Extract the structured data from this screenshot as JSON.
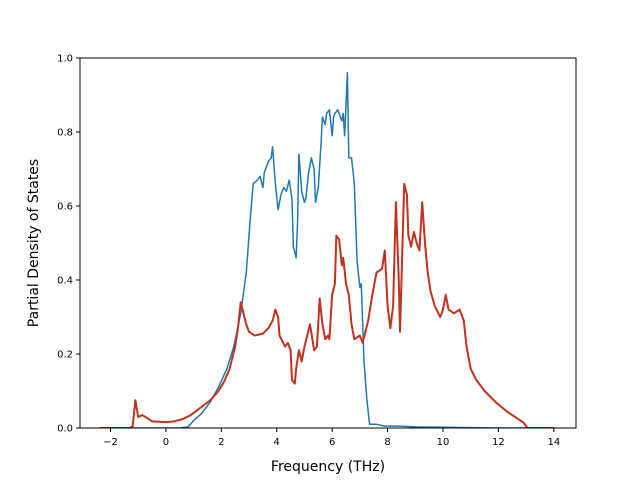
{
  "chart_data": {
    "type": "line",
    "xlabel": "Frequency (THz)",
    "ylabel": "Partial Density of States",
    "xlim": [
      -3.1,
      14.8
    ],
    "ylim": [
      0,
      1.0
    ],
    "xticks": [
      -2,
      0,
      2,
      4,
      6,
      8,
      10,
      12,
      14
    ],
    "xtick_labels": [
      "−2",
      "0",
      "2",
      "4",
      "6",
      "8",
      "10",
      "12",
      "14"
    ],
    "yticks": [
      0.0,
      0.2,
      0.4,
      0.6,
      0.8,
      1.0
    ],
    "ytick_labels": [
      "0.0",
      "0.2",
      "0.4",
      "0.6",
      "0.8",
      "1.0"
    ],
    "grid": false,
    "series": [
      {
        "color": "#1f77b4",
        "points": [
          [
            -2.4,
            0.0
          ],
          [
            0.5,
            0.0
          ],
          [
            0.8,
            0.003
          ],
          [
            1.0,
            0.02
          ],
          [
            1.3,
            0.04
          ],
          [
            1.6,
            0.07
          ],
          [
            1.9,
            0.11
          ],
          [
            2.2,
            0.16
          ],
          [
            2.45,
            0.22
          ],
          [
            2.7,
            0.31
          ],
          [
            2.9,
            0.42
          ],
          [
            3.0,
            0.52
          ],
          [
            3.05,
            0.57
          ],
          [
            3.15,
            0.66
          ],
          [
            3.3,
            0.67
          ],
          [
            3.4,
            0.68
          ],
          [
            3.5,
            0.65
          ],
          [
            3.55,
            0.69
          ],
          [
            3.7,
            0.72
          ],
          [
            3.8,
            0.73
          ],
          [
            3.85,
            0.76
          ],
          [
            3.95,
            0.66
          ],
          [
            4.05,
            0.59
          ],
          [
            4.15,
            0.63
          ],
          [
            4.25,
            0.65
          ],
          [
            4.35,
            0.64
          ],
          [
            4.45,
            0.67
          ],
          [
            4.55,
            0.62
          ],
          [
            4.6,
            0.49
          ],
          [
            4.7,
            0.46
          ],
          [
            4.75,
            0.55
          ],
          [
            4.8,
            0.74
          ],
          [
            4.9,
            0.64
          ],
          [
            5.0,
            0.61
          ],
          [
            5.05,
            0.62
          ],
          [
            5.15,
            0.69
          ],
          [
            5.25,
            0.73
          ],
          [
            5.35,
            0.7
          ],
          [
            5.4,
            0.61
          ],
          [
            5.5,
            0.65
          ],
          [
            5.6,
            0.77
          ],
          [
            5.65,
            0.84
          ],
          [
            5.75,
            0.82
          ],
          [
            5.8,
            0.85
          ],
          [
            5.9,
            0.86
          ],
          [
            6.0,
            0.79
          ],
          [
            6.05,
            0.84
          ],
          [
            6.1,
            0.85
          ],
          [
            6.2,
            0.86
          ],
          [
            6.3,
            0.84
          ],
          [
            6.35,
            0.83
          ],
          [
            6.4,
            0.85
          ],
          [
            6.45,
            0.79
          ],
          [
            6.55,
            0.96
          ],
          [
            6.6,
            0.73
          ],
          [
            6.7,
            0.73
          ],
          [
            6.8,
            0.66
          ],
          [
            6.9,
            0.45
          ],
          [
            7.0,
            0.38
          ],
          [
            7.05,
            0.39
          ],
          [
            7.15,
            0.18
          ],
          [
            7.25,
            0.08
          ],
          [
            7.35,
            0.01
          ],
          [
            7.6,
            0.01
          ],
          [
            7.9,
            0.005
          ],
          [
            8.4,
            0.005
          ],
          [
            9.0,
            0.003
          ],
          [
            10.0,
            0.002
          ],
          [
            11.0,
            0.001
          ],
          [
            12.0,
            0.0
          ],
          [
            14.0,
            0.0
          ]
        ]
      },
      {
        "color": "#c0321e",
        "points": [
          [
            -2.4,
            0.0
          ],
          [
            -1.3,
            0.0
          ],
          [
            -1.2,
            0.005
          ],
          [
            -1.1,
            0.075
          ],
          [
            -1.0,
            0.03
          ],
          [
            -0.85,
            0.035
          ],
          [
            -0.7,
            0.028
          ],
          [
            -0.5,
            0.018
          ],
          [
            0.0,
            0.016
          ],
          [
            0.3,
            0.018
          ],
          [
            0.6,
            0.024
          ],
          [
            0.9,
            0.035
          ],
          [
            1.2,
            0.052
          ],
          [
            1.6,
            0.075
          ],
          [
            1.9,
            0.1
          ],
          [
            2.1,
            0.125
          ],
          [
            2.3,
            0.16
          ],
          [
            2.5,
            0.22
          ],
          [
            2.6,
            0.27
          ],
          [
            2.7,
            0.34
          ],
          [
            2.8,
            0.31
          ],
          [
            2.9,
            0.28
          ],
          [
            3.0,
            0.26
          ],
          [
            3.2,
            0.25
          ],
          [
            3.5,
            0.255
          ],
          [
            3.7,
            0.27
          ],
          [
            3.85,
            0.29
          ],
          [
            3.95,
            0.32
          ],
          [
            4.05,
            0.3
          ],
          [
            4.1,
            0.25
          ],
          [
            4.3,
            0.22
          ],
          [
            4.4,
            0.23
          ],
          [
            4.5,
            0.21
          ],
          [
            4.55,
            0.13
          ],
          [
            4.65,
            0.12
          ],
          [
            4.7,
            0.16
          ],
          [
            4.8,
            0.21
          ],
          [
            4.9,
            0.18
          ],
          [
            5.0,
            0.22
          ],
          [
            5.1,
            0.25
          ],
          [
            5.2,
            0.28
          ],
          [
            5.35,
            0.21
          ],
          [
            5.45,
            0.22
          ],
          [
            5.55,
            0.35
          ],
          [
            5.65,
            0.28
          ],
          [
            5.75,
            0.24
          ],
          [
            5.85,
            0.25
          ],
          [
            5.9,
            0.24
          ],
          [
            6.0,
            0.36
          ],
          [
            6.1,
            0.39
          ],
          [
            6.15,
            0.52
          ],
          [
            6.25,
            0.51
          ],
          [
            6.35,
            0.44
          ],
          [
            6.4,
            0.46
          ],
          [
            6.5,
            0.39
          ],
          [
            6.6,
            0.36
          ],
          [
            6.7,
            0.28
          ],
          [
            6.8,
            0.24
          ],
          [
            7.0,
            0.25
          ],
          [
            7.1,
            0.23
          ],
          [
            7.3,
            0.29
          ],
          [
            7.45,
            0.36
          ],
          [
            7.6,
            0.42
          ],
          [
            7.8,
            0.43
          ],
          [
            7.9,
            0.48
          ],
          [
            8.0,
            0.33
          ],
          [
            8.1,
            0.27
          ],
          [
            8.2,
            0.33
          ],
          [
            8.3,
            0.61
          ],
          [
            8.4,
            0.41
          ],
          [
            8.45,
            0.26
          ],
          [
            8.6,
            0.66
          ],
          [
            8.7,
            0.63
          ],
          [
            8.75,
            0.52
          ],
          [
            8.85,
            0.49
          ],
          [
            8.95,
            0.53
          ],
          [
            9.05,
            0.5
          ],
          [
            9.15,
            0.48
          ],
          [
            9.25,
            0.61
          ],
          [
            9.35,
            0.5
          ],
          [
            9.45,
            0.42
          ],
          [
            9.55,
            0.37
          ],
          [
            9.7,
            0.33
          ],
          [
            9.9,
            0.3
          ],
          [
            10.0,
            0.32
          ],
          [
            10.1,
            0.36
          ],
          [
            10.2,
            0.32
          ],
          [
            10.4,
            0.31
          ],
          [
            10.6,
            0.32
          ],
          [
            10.75,
            0.29
          ],
          [
            10.85,
            0.22
          ],
          [
            11.0,
            0.16
          ],
          [
            11.2,
            0.13
          ],
          [
            11.5,
            0.1
          ],
          [
            11.9,
            0.07
          ],
          [
            12.3,
            0.045
          ],
          [
            12.6,
            0.03
          ],
          [
            12.9,
            0.015
          ],
          [
            13.0,
            0.005
          ],
          [
            13.05,
            0.0
          ],
          [
            14.0,
            0.0
          ]
        ]
      }
    ]
  }
}
